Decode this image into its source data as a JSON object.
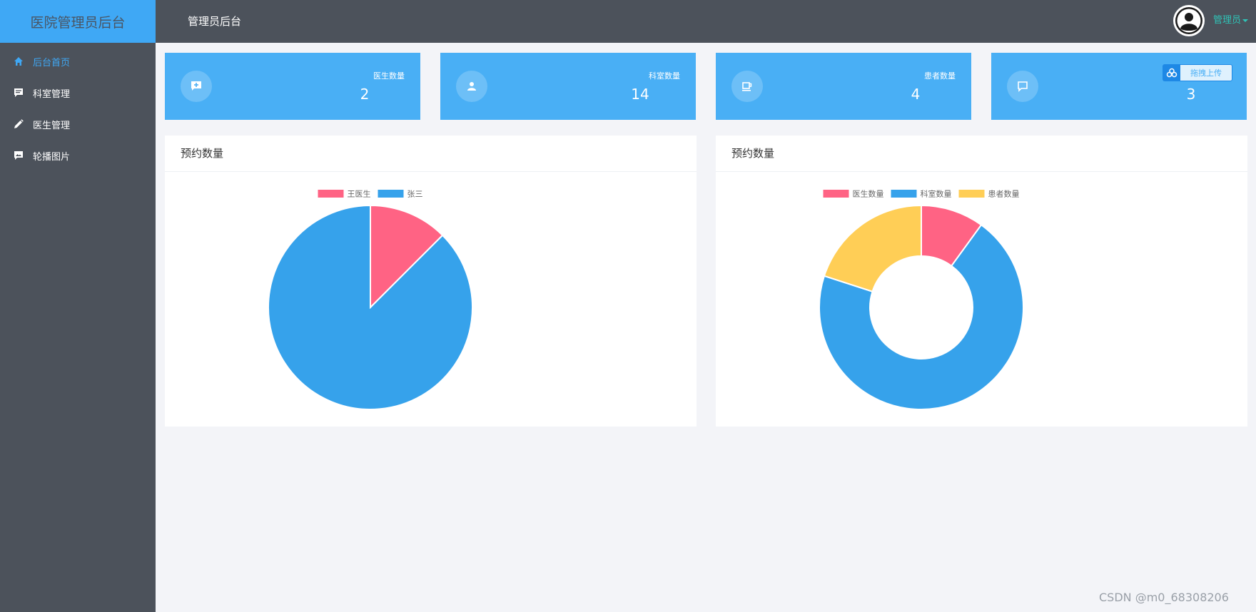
{
  "sidebar": {
    "brand": "医院管理员后台",
    "items": [
      {
        "label": "后台首页",
        "icon": "home-icon",
        "active": true
      },
      {
        "label": "科室管理",
        "icon": "comment-icon",
        "active": false
      },
      {
        "label": "医生管理",
        "icon": "pencil-icon",
        "active": false
      },
      {
        "label": "轮播图片",
        "icon": "image-icon",
        "active": false
      }
    ]
  },
  "header": {
    "title": "管理员后台",
    "user": "管理员"
  },
  "stats": [
    {
      "label": "医生数量",
      "value": "2",
      "icon": "chat-plus-icon"
    },
    {
      "label": "科室数量",
      "value": "14",
      "icon": "user-icon"
    },
    {
      "label": "患者数量",
      "value": "4",
      "icon": "cup-icon"
    },
    {
      "label": "",
      "value": "3",
      "icon": "message-icon"
    }
  ],
  "upload_button": "拖拽上传",
  "colors": {
    "accent": "#3fa8f5",
    "sidebar": "#4c525b",
    "pink": "#ff6384",
    "blue": "#36a2eb",
    "yellow": "#ffce56",
    "user_link": "#2fc3b7"
  },
  "panels": [
    {
      "title": "预约数量"
    },
    {
      "title": "预约数量"
    }
  ],
  "chart_data": [
    {
      "type": "pie",
      "categories": [
        "王医生",
        "张三"
      ],
      "values": [
        1,
        7
      ],
      "colors": [
        "#ff6384",
        "#36a2eb"
      ],
      "legend": "top"
    },
    {
      "type": "pie",
      "donut": true,
      "categories": [
        "医生数量",
        "科室数量",
        "患者数量"
      ],
      "values": [
        2,
        14,
        4
      ],
      "colors": [
        "#ff6384",
        "#36a2eb",
        "#ffce56"
      ],
      "legend": "top"
    }
  ],
  "watermark": "CSDN @m0_68308206"
}
